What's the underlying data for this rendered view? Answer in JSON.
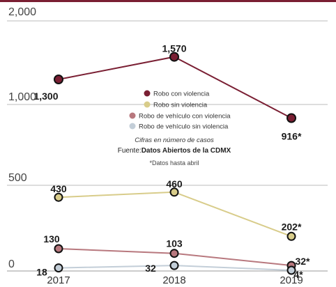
{
  "chart_data": {
    "type": "line",
    "x": [
      "2017",
      "2018",
      "2019"
    ],
    "yticks": [
      "2,000",
      "1,000",
      "500",
      "0"
    ],
    "series": [
      {
        "name": "Robo con violencia",
        "color": "#7a1f33",
        "values": [
          1300,
          1570,
          916
        ],
        "labels": [
          "1,300",
          "1,570",
          "916*"
        ]
      },
      {
        "name": "Robo sin violencia",
        "color": "#d8cc8a",
        "values": [
          430,
          460,
          202
        ],
        "labels": [
          "430",
          "460",
          "202*"
        ]
      },
      {
        "name": "Robo de vehículo con violencia",
        "color": "#b8787e",
        "values": [
          130,
          103,
          32
        ],
        "labels": [
          "130",
          "103",
          "32*"
        ]
      },
      {
        "name": "Robo de vehículo sin violencia",
        "color": "#c3ced8",
        "values": [
          18,
          32,
          4
        ],
        "labels": [
          "18",
          "32",
          "4*"
        ]
      }
    ],
    "note": "Cifras en número de casos",
    "source_prefix": "Fuente:",
    "source_name": "Datos Abiertos de la CDMX",
    "footnote": "*Datos hasta abril",
    "legend_position": "center",
    "grid": false
  },
  "accent_color": "#7a1f33"
}
